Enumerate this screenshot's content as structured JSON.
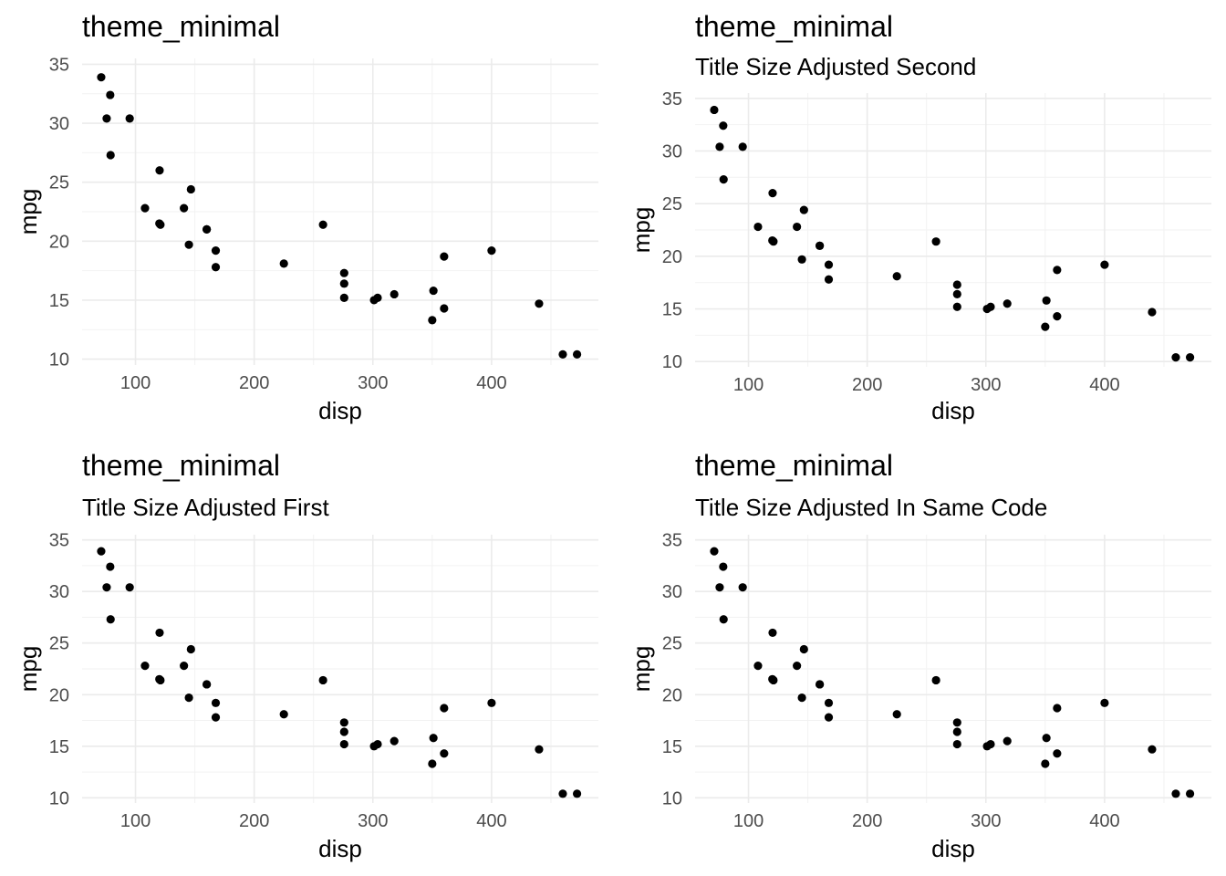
{
  "chart_data": [
    {
      "type": "scatter",
      "title": "theme_minimal",
      "subtitle": "",
      "xlabel": "disp",
      "ylabel": "mpg",
      "xlim": [
        55,
        490
      ],
      "ylim": [
        9.5,
        35.5
      ],
      "xticks": [
        100,
        200,
        300,
        400
      ],
      "yticks": [
        10,
        15,
        20,
        25,
        30,
        35
      ],
      "grid": true,
      "points": "shared"
    },
    {
      "type": "scatter",
      "title": "theme_minimal",
      "subtitle": "Title Size Adjusted Second",
      "xlabel": "disp",
      "ylabel": "mpg",
      "xlim": [
        55,
        490
      ],
      "ylim": [
        9.5,
        35.5
      ],
      "xticks": [
        100,
        200,
        300,
        400
      ],
      "yticks": [
        10,
        15,
        20,
        25,
        30,
        35
      ],
      "grid": true,
      "points": "shared"
    },
    {
      "type": "scatter",
      "title": "theme_minimal",
      "subtitle": "Title Size Adjusted First",
      "xlabel": "disp",
      "ylabel": "mpg",
      "xlim": [
        55,
        490
      ],
      "ylim": [
        9.5,
        35.5
      ],
      "xticks": [
        100,
        200,
        300,
        400
      ],
      "yticks": [
        10,
        15,
        20,
        25,
        30,
        35
      ],
      "grid": true,
      "points": "shared"
    },
    {
      "type": "scatter",
      "title": "theme_minimal",
      "subtitle": "Title Size Adjusted In Same Code",
      "xlabel": "disp",
      "ylabel": "mpg",
      "xlim": [
        55,
        490
      ],
      "ylim": [
        9.5,
        35.5
      ],
      "xticks": [
        100,
        200,
        300,
        400
      ],
      "yticks": [
        10,
        15,
        20,
        25,
        30,
        35
      ],
      "grid": true,
      "points": "shared"
    }
  ],
  "points": [
    {
      "x": 160,
      "y": 21.0
    },
    {
      "x": 160,
      "y": 21.0
    },
    {
      "x": 108,
      "y": 22.8
    },
    {
      "x": 258,
      "y": 21.4
    },
    {
      "x": 360,
      "y": 18.7
    },
    {
      "x": 225,
      "y": 18.1
    },
    {
      "x": 360,
      "y": 14.3
    },
    {
      "x": 146.7,
      "y": 24.4
    },
    {
      "x": 140.8,
      "y": 22.8
    },
    {
      "x": 167.6,
      "y": 19.2
    },
    {
      "x": 167.6,
      "y": 17.8
    },
    {
      "x": 275.8,
      "y": 16.4
    },
    {
      "x": 275.8,
      "y": 17.3
    },
    {
      "x": 275.8,
      "y": 15.2
    },
    {
      "x": 472,
      "y": 10.4
    },
    {
      "x": 460,
      "y": 10.4
    },
    {
      "x": 440,
      "y": 14.7
    },
    {
      "x": 78.7,
      "y": 32.4
    },
    {
      "x": 75.7,
      "y": 30.4
    },
    {
      "x": 71.1,
      "y": 33.9
    },
    {
      "x": 120.1,
      "y": 21.5
    },
    {
      "x": 318,
      "y": 15.5
    },
    {
      "x": 304,
      "y": 15.2
    },
    {
      "x": 350,
      "y": 13.3
    },
    {
      "x": 400,
      "y": 19.2
    },
    {
      "x": 79,
      "y": 27.3
    },
    {
      "x": 120.3,
      "y": 26.0
    },
    {
      "x": 95.1,
      "y": 30.4
    },
    {
      "x": 351,
      "y": 15.8
    },
    {
      "x": 145,
      "y": 19.7
    },
    {
      "x": 301,
      "y": 15.0
    },
    {
      "x": 121,
      "y": 21.4
    }
  ],
  "colors": {
    "grid_major": "#ebebeb",
    "grid_minor": "#f2f2f2",
    "point": "#000000",
    "tick_text": "#4d4d4d"
  }
}
